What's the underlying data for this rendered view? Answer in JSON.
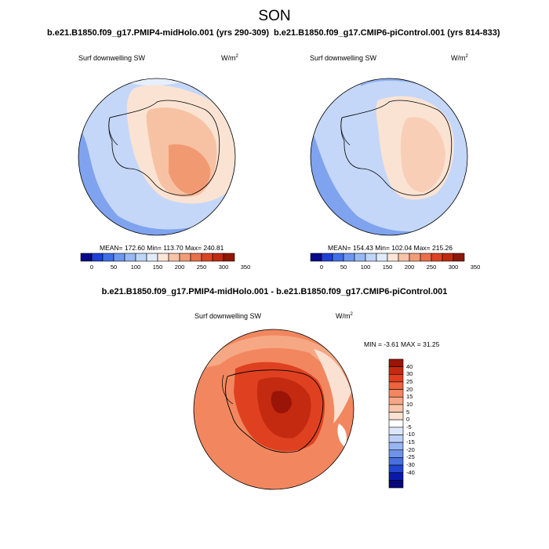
{
  "figure": {
    "title": "SON",
    "left_panel_title": "b.e21.B1850.f09_g17.PMIP4-midHolo.001 (yrs 290-309)",
    "right_panel_title": "b.e21.B1850.f09_g17.CMIP6-piControl.001 (yrs 814-833)",
    "diff_title": "b.e21.B1850.f09_g17.PMIP4-midHolo.001 - b.e21.B1850.f09_g17.CMIP6-piControl.001"
  },
  "panels": {
    "left": {
      "variable": "Surf downwelling SW",
      "units": "W/m",
      "units_sup": "2",
      "stats": "MEAN= 172.60  Min= 113.70  Max= 240.81"
    },
    "right": {
      "variable": "Surf downwelling SW",
      "units": "W/m",
      "units_sup": "2",
      "stats": "MEAN= 154.43  Min= 102.04  Max= 215.26"
    },
    "diff": {
      "variable": "Surf downwelling SW",
      "units": "W/m",
      "units_sup": "2",
      "stats": "MIN =  -3.61 MAX =  31.25"
    }
  },
  "colorbar_abs": {
    "ticks": [
      "0",
      "50",
      "100",
      "150",
      "200",
      "250",
      "300",
      "350"
    ],
    "colors": [
      "#08088a",
      "#1f3fd6",
      "#3f6fe8",
      "#6e98f0",
      "#98b9f5",
      "#c0d6f8",
      "#e0ecfb",
      "#fde6d8",
      "#f8c4a8",
      "#f29b78",
      "#ea6f4b",
      "#dc4423",
      "#c02a0e",
      "#8f1707"
    ]
  },
  "colorbar_diff": {
    "ticks": [
      "40",
      "30",
      "25",
      "20",
      "15",
      "10",
      "5",
      "0",
      "-5",
      "-10",
      "-15",
      "-20",
      "-25",
      "-30",
      "-40"
    ],
    "colors": [
      "#9a1508",
      "#c32a10",
      "#df4120",
      "#ec643e",
      "#f2875f",
      "#f6a884",
      "#f9c6aa",
      "#fbe1d2",
      "#ffffff",
      "#dce7fb",
      "#bcd0f7",
      "#97b5f1",
      "#6e94ea",
      "#4870df",
      "#2246cf",
      "#0a1aa8",
      "#08087c"
    ]
  }
}
